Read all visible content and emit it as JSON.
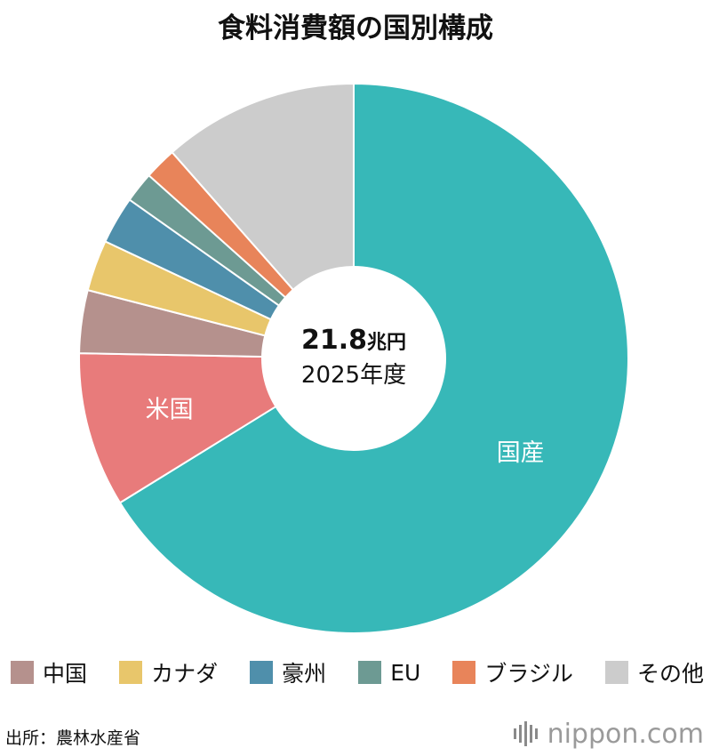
{
  "title": "食料消費額の国別構成",
  "center": {
    "value": "21.8",
    "unit": "兆円",
    "year": "2025年度"
  },
  "chart_data": {
    "type": "pie",
    "donut": true,
    "categories": [
      "国産",
      "米国",
      "中国",
      "カナダ",
      "豪州",
      "EU",
      "ブラジル",
      "その他"
    ],
    "values": [
      66.2,
      9.1,
      3.7,
      3.0,
      2.8,
      1.8,
      1.9,
      11.5
    ],
    "colors": [
      "#37b8b8",
      "#e87b7b",
      "#b5918d",
      "#e8c66b",
      "#4f8fab",
      "#6d9a93",
      "#e8845a",
      "#cccccc"
    ],
    "slice_labels": [
      "国産",
      "米国",
      "",
      "",
      "",
      "",
      "",
      ""
    ],
    "legend_placement": "bottom"
  },
  "legend": [
    {
      "label": "中国",
      "color": "#b5918d"
    },
    {
      "label": "カナダ",
      "color": "#e8c66b"
    },
    {
      "label": "豪州",
      "color": "#4f8fab"
    },
    {
      "label": "EU",
      "color": "#6d9a93"
    },
    {
      "label": "ブラジル",
      "color": "#e8845a"
    },
    {
      "label": "その他",
      "color": "#cccccc"
    }
  ],
  "source": "出所：農林水産省",
  "logo": {
    "name": "nippon",
    "suffix": ".com",
    "icon": "sound-bars-icon"
  }
}
